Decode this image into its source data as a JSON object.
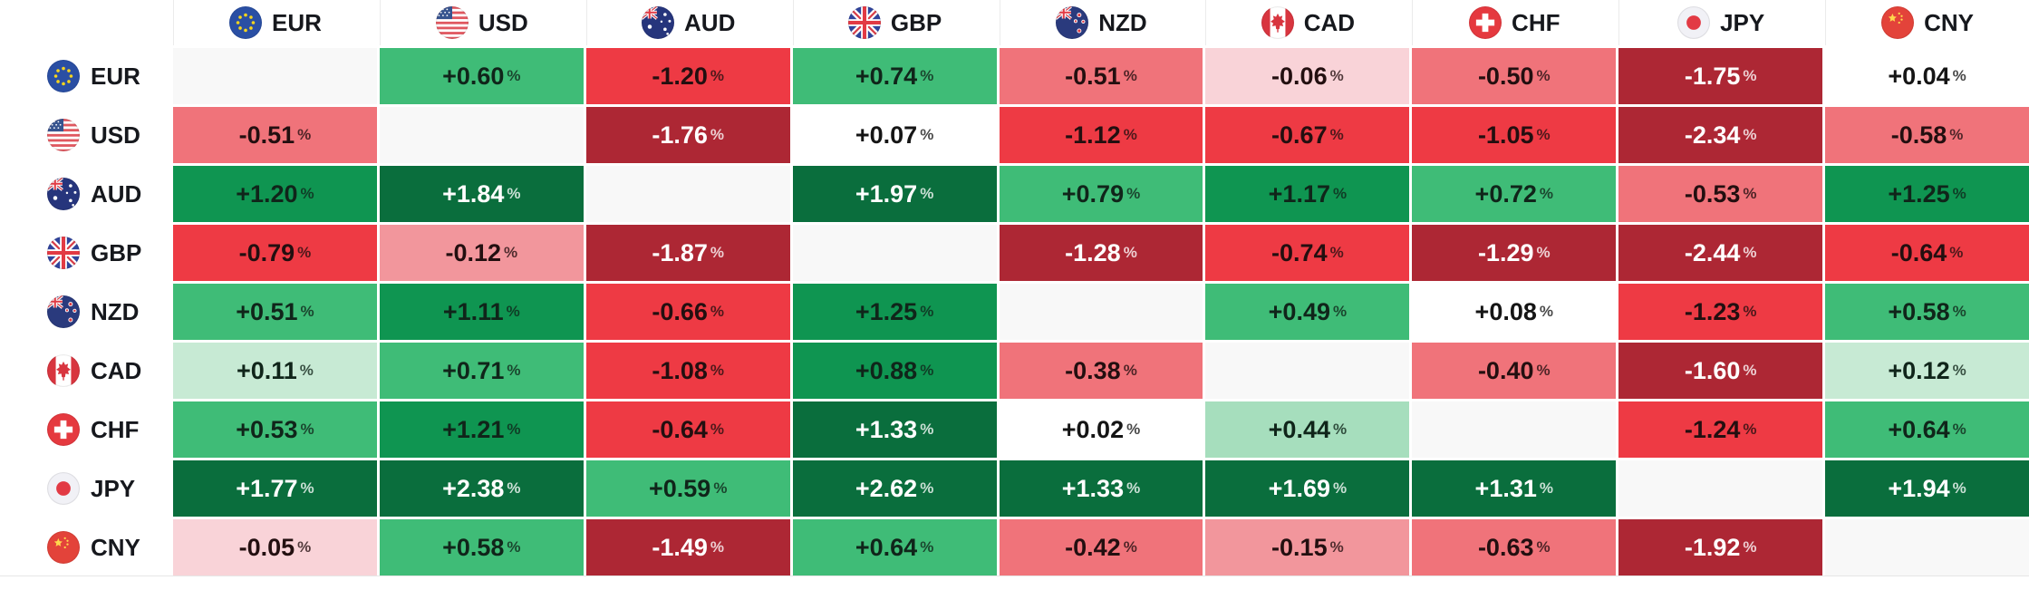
{
  "chart_data": {
    "type": "heatmap",
    "title": "",
    "columns": [
      "EUR",
      "USD",
      "AUD",
      "GBP",
      "NZD",
      "CAD",
      "CHF",
      "JPY",
      "CNY"
    ],
    "rows": [
      "EUR",
      "USD",
      "AUD",
      "GBP",
      "NZD",
      "CAD",
      "CHF",
      "JPY",
      "CNY"
    ],
    "values": [
      [
        null,
        0.6,
        -1.2,
        0.74,
        -0.51,
        -0.06,
        -0.5,
        -1.75,
        0.04
      ],
      [
        -0.51,
        null,
        -1.76,
        0.07,
        -1.12,
        -0.67,
        -1.05,
        -2.34,
        -0.58
      ],
      [
        1.2,
        1.84,
        null,
        1.97,
        0.79,
        1.17,
        0.72,
        -0.53,
        1.25
      ],
      [
        -0.79,
        -0.12,
        -1.87,
        null,
        -1.28,
        -0.74,
        -1.29,
        -2.44,
        -0.64
      ],
      [
        0.51,
        1.11,
        -0.66,
        1.25,
        null,
        0.49,
        0.08,
        -1.23,
        0.58
      ],
      [
        0.11,
        0.71,
        -1.08,
        0.88,
        -0.38,
        null,
        -0.4,
        -1.6,
        0.12
      ],
      [
        0.53,
        1.21,
        -0.64,
        1.33,
        0.02,
        0.44,
        null,
        -1.24,
        0.64
      ],
      [
        1.77,
        2.38,
        0.59,
        2.62,
        1.33,
        1.69,
        1.31,
        null,
        1.94
      ],
      [
        -0.05,
        0.58,
        -1.49,
        0.64,
        -0.42,
        -0.15,
        -0.63,
        -1.92,
        null
      ]
    ],
    "cell_unit": "%",
    "legend_position": "none",
    "grid": false
  },
  "format": {
    "positive_prefix": "+",
    "negative_prefix": "-",
    "suffix": "%",
    "decimals": 2
  },
  "icon_names": [
    "eur-flag-icon",
    "usd-flag-icon",
    "aud-flag-icon",
    "gbp-flag-icon",
    "nzd-flag-icon",
    "cad-flag-icon",
    "chf-flag-icon",
    "jpy-flag-icon",
    "cny-flag-icon"
  ],
  "colors": {
    "page_bg": "#ffffff",
    "diagonal_bg": "#f8f8f8",
    "header_divider": "#ebebeb",
    "table_bottom_border": "#e6e6e6",
    "positive_scale": [
      {
        "min_abs": 1.28,
        "bg": "#0a6e3d",
        "text": "#ffffff"
      },
      {
        "min_abs": 0.85,
        "bg": "#0f9551",
        "text": "#10251a"
      },
      {
        "min_abs": 0.46,
        "bg": "#3fbc77",
        "text": "#10251a"
      },
      {
        "min_abs": 0.28,
        "bg": "#a6debd",
        "text": "#10251a"
      },
      {
        "min_abs": 0.095,
        "bg": "#c7ead4",
        "text": "#10251a"
      },
      {
        "min_abs": 0,
        "bg": "#ffffff",
        "text": "#151515"
      }
    ],
    "negative_scale": [
      {
        "min_abs": 1.27,
        "bg": "#ad2734",
        "text": "#ffffff"
      },
      {
        "min_abs": 0.635,
        "bg": "#ee3a44",
        "text": "#230f10"
      },
      {
        "min_abs": 0.33,
        "bg": "#f0737a",
        "text": "#230f10"
      },
      {
        "min_abs": 0.095,
        "bg": "#f2969c",
        "text": "#230f10"
      },
      {
        "min_abs": 0,
        "bg": "#f9d3d8",
        "text": "#230f10"
      }
    ]
  }
}
